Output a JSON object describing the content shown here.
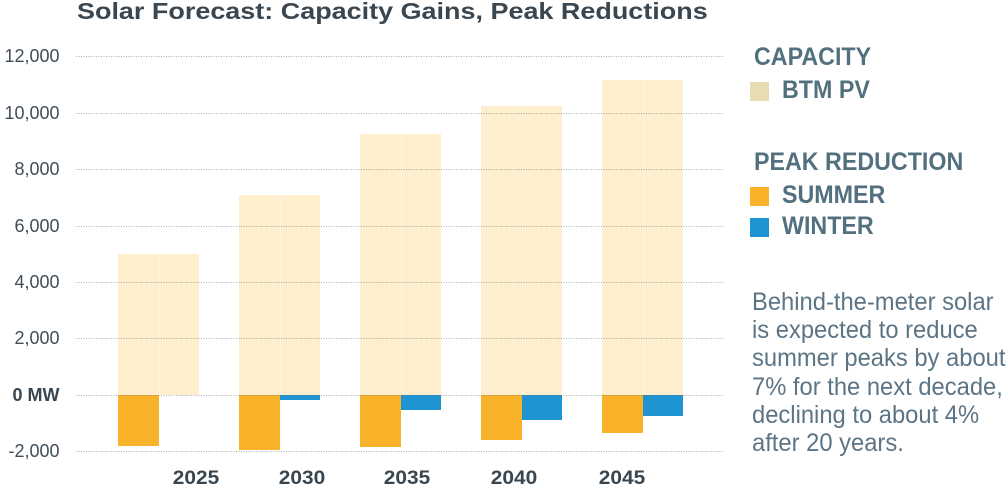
{
  "title": "Solar Forecast: Capacity Gains, Peak Reductions",
  "chart_data": {
    "type": "bar",
    "title": "Solar Forecast: Capacity Gains, Peak Reductions",
    "categories": [
      "2025",
      "2030",
      "2035",
      "2040",
      "2045"
    ],
    "series": [
      {
        "name": "BTM PV",
        "group": "CAPACITY",
        "color": "#fdeecd",
        "values": [
          5000,
          7100,
          9250,
          10250,
          11150
        ]
      },
      {
        "name": "SUMMER",
        "group": "PEAK REDUCTION",
        "color": "#f9b32b",
        "values": [
          -1800,
          -1950,
          -1850,
          -1600,
          -1350
        ]
      },
      {
        "name": "WINTER",
        "group": "PEAK REDUCTION",
        "color": "#1e95d2",
        "values": [
          0,
          -200,
          -550,
          -900,
          -750
        ]
      }
    ],
    "unit": "MW",
    "ylim": [
      -2000,
      12000
    ],
    "yticks": [
      {
        "value": 12000,
        "label": "12,000",
        "bold": false
      },
      {
        "value": 10000,
        "label": "10,000",
        "bold": false
      },
      {
        "value": 8000,
        "label": "8,000",
        "bold": false
      },
      {
        "value": 6000,
        "label": "6,000",
        "bold": false
      },
      {
        "value": 4000,
        "label": "4,000",
        "bold": false
      },
      {
        "value": 2000,
        "label": "2,000",
        "bold": false
      },
      {
        "value": 0,
        "label": "0 MW",
        "bold": true
      },
      {
        "value": -2000,
        "label": "-2,000",
        "bold": false
      }
    ],
    "grid": "horizontal-dotted",
    "legend_position": "right"
  },
  "legend": {
    "capacity_heading": "CAPACITY",
    "btm_pv_label": "BTM PV",
    "btm_pv_swatch_color": "#e8dcb1",
    "peak_reduction_heading": "PEAK REDUCTION",
    "summer_label": "SUMMER",
    "summer_swatch_color": "#f9b32b",
    "winter_label": "WINTER",
    "winter_swatch_color": "#1e95d2"
  },
  "note": {
    "text": "Behind-the-meter solar is expected to reduce summer peaks by about 7% for the next decade, declining to about 4% after 20 years.",
    "lines": [
      "Behind-the-meter solar",
      "is expected to reduce",
      "summer peaks by about",
      "7% for the next decade,",
      "declining to about 4%",
      "after 20 years."
    ]
  }
}
